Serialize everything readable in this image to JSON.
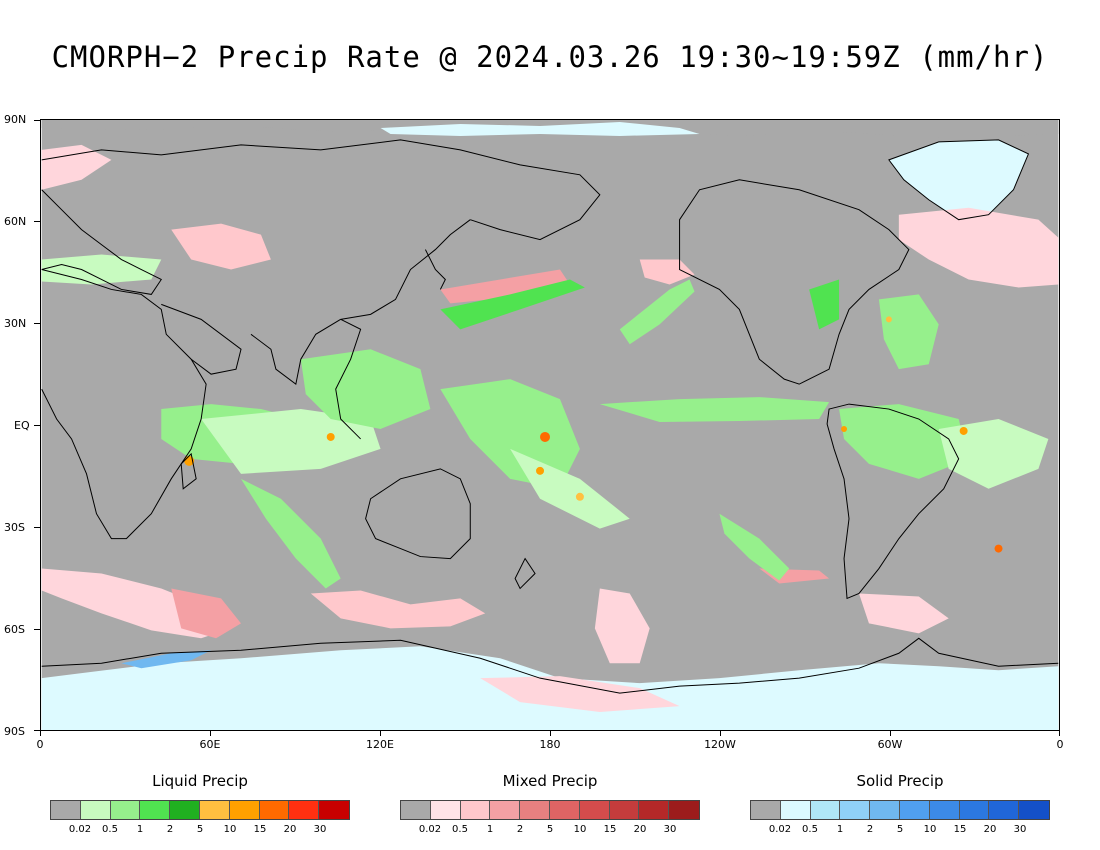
{
  "title": "CMORPH−2 Precip Rate @ 2024.03.26 19:30~19:59Z (mm/hr)",
  "map": {
    "lat_labels": [
      "90N",
      "60N",
      "30N",
      "EQ",
      "30S",
      "60S",
      "90S"
    ],
    "lon_labels": [
      "0",
      "60E",
      "120E",
      "180",
      "120W",
      "60W",
      "0"
    ],
    "colors": {
      "background": "#a9a9a9",
      "coast": "#000000",
      "snow_cover": "#ddfaff"
    }
  },
  "legends": [
    {
      "title": "Liquid Precip",
      "colors": [
        "#a9a9a9",
        "#c8fbc0",
        "#96f08c",
        "#50e350",
        "#20b020",
        "#ffc040",
        "#ffa000",
        "#ff6a00",
        "#ff3010",
        "#c80000"
      ],
      "ticks": [
        "0.02",
        "0.5",
        "1",
        "2",
        "5",
        "10",
        "15",
        "20",
        "30"
      ]
    },
    {
      "title": "Mixed Precip",
      "colors": [
        "#a9a9a9",
        "#ffe4e8",
        "#ffc8cc",
        "#f4a0a4",
        "#e88080",
        "#de6464",
        "#d44c4c",
        "#c43c3c",
        "#b42828",
        "#9c1c1c"
      ],
      "ticks": [
        "0.02",
        "0.5",
        "1",
        "2",
        "5",
        "10",
        "15",
        "20",
        "30"
      ]
    },
    {
      "title": "Solid Precip",
      "colors": [
        "#a9a9a9",
        "#dcfaff",
        "#b0e8f8",
        "#90d0f8",
        "#70b8f0",
        "#509ff0",
        "#3c8ae8",
        "#2c78e0",
        "#2066d8",
        "#1450c8"
      ],
      "ticks": [
        "0.02",
        "0.5",
        "1",
        "2",
        "5",
        "10",
        "15",
        "20",
        "30"
      ]
    }
  ]
}
